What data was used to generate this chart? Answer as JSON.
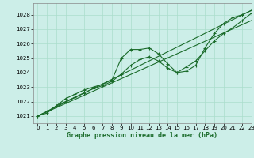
{
  "title": "Graphe pression niveau de la mer (hPa)",
  "bg_color": "#cceee8",
  "grid_color": "#aaddcc",
  "line_color": "#1a6b2a",
  "xlim": [
    -0.5,
    23
  ],
  "ylim": [
    1020.5,
    1028.8
  ],
  "yticks": [
    1021,
    1022,
    1023,
    1024,
    1025,
    1026,
    1027,
    1028
  ],
  "xticks": [
    0,
    1,
    2,
    3,
    4,
    5,
    6,
    7,
    8,
    9,
    10,
    11,
    12,
    13,
    14,
    15,
    16,
    17,
    18,
    19,
    20,
    21,
    22,
    23
  ],
  "xlabel_fontsize": 6.0,
  "tick_fontsize": 5.0,
  "series": [
    {
      "x": [
        0,
        1,
        2,
        3,
        4,
        5,
        6,
        7,
        8,
        9,
        10,
        11,
        12,
        13,
        14,
        15,
        16,
        17,
        18,
        19,
        20,
        21,
        22,
        23
      ],
      "y": [
        1021.0,
        1021.3,
        1021.7,
        1022.2,
        1022.5,
        1022.8,
        1023.0,
        1023.2,
        1023.5,
        1025.0,
        1025.6,
        1025.6,
        1025.7,
        1025.3,
        1024.6,
        1024.0,
        1024.1,
        1024.5,
        1025.7,
        1026.7,
        1027.4,
        1027.8,
        1028.0,
        1028.3
      ],
      "marker": true,
      "lw": 0.8
    },
    {
      "x": [
        0,
        1,
        2,
        3,
        4,
        5,
        6,
        7,
        8,
        9,
        10,
        11,
        12,
        13,
        14,
        15,
        16,
        17,
        18,
        19,
        20,
        21,
        22,
        23
      ],
      "y": [
        1021.0,
        1021.2,
        1021.7,
        1022.0,
        1022.3,
        1022.6,
        1022.9,
        1023.1,
        1023.4,
        1023.9,
        1024.5,
        1024.9,
        1025.1,
        1024.8,
        1024.3,
        1024.0,
        1024.4,
        1024.8,
        1025.5,
        1026.2,
        1026.7,
        1027.1,
        1027.6,
        1028.1
      ],
      "marker": true,
      "lw": 0.8
    },
    {
      "x": [
        0,
        23
      ],
      "y": [
        1021.0,
        1028.3
      ],
      "marker": false,
      "lw": 0.8
    },
    {
      "x": [
        0,
        23
      ],
      "y": [
        1021.0,
        1027.6
      ],
      "marker": false,
      "lw": 0.8
    }
  ]
}
